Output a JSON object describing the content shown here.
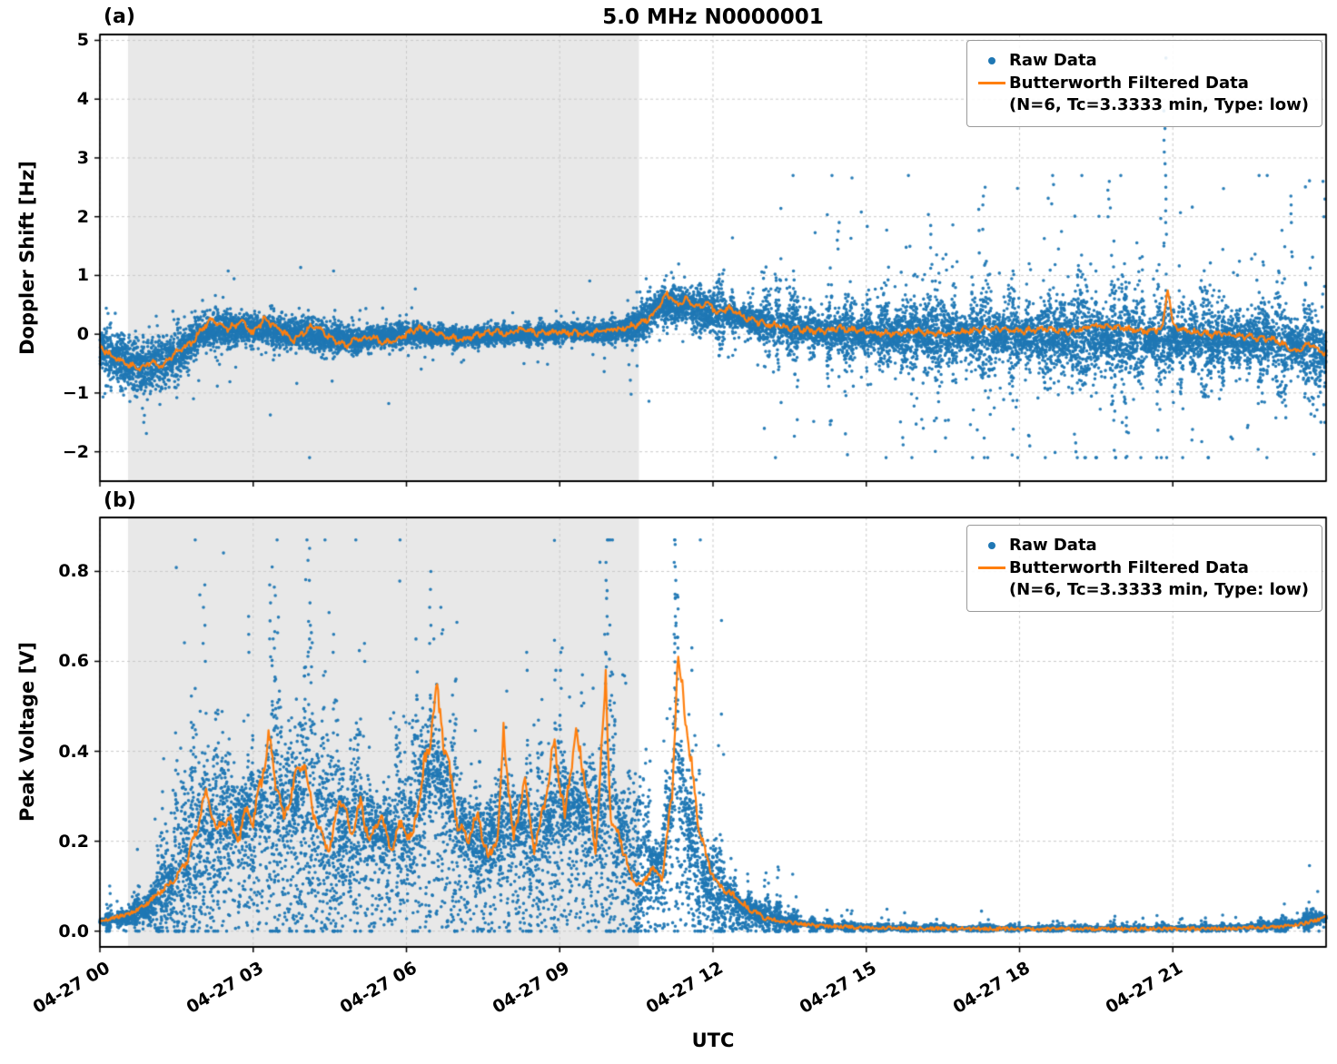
{
  "figure": {
    "title": "5.0 MHz N0000001",
    "xlabel": "UTC",
    "colors": {
      "raw": "#1f77b4",
      "filtered": "#ff7f0e",
      "shade": "#e8e8e8",
      "grid": "#c9c9c9",
      "axis": "#000000"
    },
    "xticks": {
      "hours": [
        0,
        3,
        6,
        9,
        12,
        15,
        18,
        21
      ],
      "labels": [
        "04-27 00",
        "04-27 03",
        "04-27 06",
        "04-27 09",
        "04-27 12",
        "04-27 15",
        "04-27 18",
        "04-27 21"
      ]
    },
    "legend": {
      "raw": "Raw Data",
      "filtered_line1": "Butterworth Filtered Data",
      "filtered_line2": "(N=6, Tc=3.3333 min, Type: low)"
    }
  },
  "chart_data": [
    {
      "id": "doppler",
      "panel_label": "(a)",
      "type": "scatter+line",
      "ylabel": "Doppler Shift [Hz]",
      "x_unit": "hours since 04-27 00:00 UTC",
      "xlim": [
        0,
        24
      ],
      "ylim": [
        -2.5,
        5.1
      ],
      "yticks": {
        "values": [
          -2,
          -1,
          0,
          1,
          2,
          3,
          4,
          5
        ],
        "labels": [
          "−2",
          "−1",
          "0",
          "1",
          "2",
          "3",
          "4",
          "5"
        ]
      },
      "shaded_region_hours": [
        0.55,
        10.55
      ],
      "filtered": {
        "x": [
          0,
          0.2,
          0.5,
          0.8,
          1.0,
          1.2,
          1.5,
          1.8,
          2.0,
          2.2,
          2.5,
          2.8,
          3.0,
          3.2,
          3.5,
          3.8,
          4.0,
          4.2,
          4.5,
          4.8,
          5.0,
          5.3,
          5.6,
          5.9,
          6.2,
          6.5,
          6.8,
          7.1,
          7.4,
          7.7,
          8.0,
          8.3,
          8.6,
          9.0,
          9.4,
          9.8,
          10.2,
          10.5,
          10.8,
          11.0,
          11.1,
          11.3,
          11.5,
          11.7,
          11.9,
          12.1,
          12.3,
          12.6,
          12.9,
          13.2,
          13.6,
          14.0,
          14.5,
          15.0,
          15.5,
          16.0,
          16.5,
          17.0,
          17.5,
          18.0,
          18.5,
          19.0,
          19.5,
          20.0,
          20.5,
          20.8,
          20.9,
          21.0,
          21.3,
          21.7,
          22.0,
          22.5,
          23.0,
          23.4,
          23.7,
          24.0
        ],
        "y": [
          -0.2,
          -0.35,
          -0.5,
          -0.6,
          -0.45,
          -0.55,
          -0.3,
          -0.15,
          0.1,
          0.25,
          0.1,
          0.2,
          0.0,
          0.25,
          0.1,
          -0.1,
          0.05,
          0.15,
          -0.05,
          -0.2,
          -0.1,
          -0.05,
          -0.15,
          -0.05,
          0.1,
          0.05,
          -0.05,
          -0.1,
          0.0,
          0.05,
          0.0,
          0.1,
          0.0,
          0.05,
          0.0,
          0.05,
          0.1,
          0.15,
          0.3,
          0.55,
          0.7,
          0.5,
          0.6,
          0.45,
          0.55,
          0.35,
          0.45,
          0.3,
          0.2,
          0.15,
          0.1,
          0.05,
          0.1,
          0.05,
          0.0,
          0.05,
          0.0,
          0.05,
          0.1,
          0.05,
          0.1,
          0.05,
          0.15,
          0.1,
          0.05,
          0.1,
          0.8,
          0.15,
          0.05,
          0.0,
          0.0,
          -0.05,
          -0.1,
          -0.3,
          -0.15,
          -0.35
        ]
      },
      "envelope": {
        "x": [
          0,
          0.5,
          0.8,
          1.2,
          1.6,
          2.0,
          3.0,
          4.0,
          5.0,
          6.0,
          7.0,
          8.0,
          9.0,
          10.0,
          10.5,
          11.0,
          11.5,
          12.0,
          12.5,
          13.0,
          14.0,
          15.0,
          16.0,
          17.0,
          18.0,
          19.0,
          20.0,
          21.0,
          22.0,
          23.0,
          23.6,
          24.0
        ],
        "center": [
          -0.25,
          -0.5,
          -0.55,
          -0.5,
          -0.3,
          0.05,
          0.1,
          0.0,
          -0.1,
          0.0,
          -0.05,
          0.0,
          0.03,
          0.05,
          0.12,
          0.5,
          0.5,
          0.38,
          0.3,
          0.18,
          0.05,
          0.0,
          0.0,
          0.0,
          -0.02,
          -0.05,
          -0.08,
          -0.1,
          -0.1,
          -0.12,
          -0.25,
          -0.35
        ],
        "spread": [
          0.35,
          0.42,
          0.45,
          0.4,
          0.32,
          0.27,
          0.25,
          0.22,
          0.2,
          0.18,
          0.16,
          0.15,
          0.14,
          0.16,
          0.2,
          0.32,
          0.32,
          0.32,
          0.32,
          0.33,
          0.36,
          0.4,
          0.45,
          0.5,
          0.55,
          0.6,
          0.6,
          0.62,
          0.55,
          0.5,
          0.55,
          0.65
        ]
      },
      "outlier_columns": [
        {
          "x": 0.85,
          "ys": [
            -1.5,
            -1.38,
            -1.26
          ]
        },
        {
          "x": 13.0,
          "ys": [
            1.05,
            0.95
          ]
        },
        {
          "x": 14.45,
          "ys": [
            1.9,
            1.75,
            1.6,
            1.45
          ]
        },
        {
          "x": 16.1,
          "ys": [
            -1.6,
            -1.45
          ]
        },
        {
          "x": 16.25,
          "ys": [
            1.85,
            1.7
          ]
        },
        {
          "x": 17.3,
          "ys": [
            2.5,
            2.35,
            2.2
          ]
        },
        {
          "x": 18.2,
          "ys": [
            -1.9,
            -1.72
          ]
        },
        {
          "x": 19.1,
          "ys": [
            -2.0,
            -1.85,
            -1.7
          ]
        },
        {
          "x": 19.75,
          "ys": [
            2.6,
            2.45,
            2.3,
            2.15,
            2.0
          ]
        },
        {
          "x": 20.85,
          "ys": [
            4.7,
            3.8,
            3.5,
            3.3,
            3.1,
            2.9,
            2.7,
            2.5,
            2.3,
            2.1,
            1.9,
            1.7,
            1.5
          ]
        },
        {
          "x": 21.4,
          "ys": [
            -1.8,
            -1.62
          ]
        },
        {
          "x": 23.3,
          "ys": [
            2.35,
            2.2,
            2.05,
            1.9
          ]
        },
        {
          "x": 23.95,
          "ys": [
            2.6,
            2.3,
            2.0,
            -1.2,
            -1.5
          ]
        }
      ]
    },
    {
      "id": "voltage",
      "panel_label": "(b)",
      "type": "scatter+line",
      "ylabel": "Peak Voltage [V]",
      "x_unit": "hours since 04-27 00:00 UTC",
      "xlim": [
        0,
        24
      ],
      "ylim": [
        -0.035,
        0.92
      ],
      "yticks": {
        "values": [
          0.0,
          0.2,
          0.4,
          0.6,
          0.8
        ],
        "labels": [
          "0.0",
          "0.2",
          "0.4",
          "0.6",
          "0.8"
        ]
      },
      "shaded_region_hours": [
        0.55,
        10.55
      ],
      "filtered": {
        "x": [
          0,
          0.3,
          0.6,
          0.9,
          1.2,
          1.5,
          1.7,
          1.9,
          2.0,
          2.1,
          2.3,
          2.5,
          2.7,
          2.9,
          3.0,
          3.1,
          3.3,
          3.4,
          3.6,
          3.8,
          4.0,
          4.1,
          4.3,
          4.5,
          4.7,
          4.9,
          5.1,
          5.3,
          5.5,
          5.7,
          5.9,
          6.1,
          6.3,
          6.5,
          6.6,
          6.8,
          7.0,
          7.2,
          7.4,
          7.6,
          7.8,
          7.9,
          8.1,
          8.3,
          8.5,
          8.7,
          8.9,
          9.1,
          9.3,
          9.5,
          9.7,
          9.9,
          10.0,
          10.2,
          10.4,
          10.6,
          10.8,
          11.0,
          11.2,
          11.3,
          11.5,
          11.7,
          11.9,
          12.1,
          12.4,
          12.7,
          13.0,
          13.5,
          14.0,
          15.0,
          16.0,
          18.0,
          20.0,
          22.0,
          23.0,
          23.5,
          24.0
        ],
        "y": [
          0.02,
          0.03,
          0.04,
          0.06,
          0.09,
          0.12,
          0.16,
          0.22,
          0.28,
          0.3,
          0.22,
          0.26,
          0.2,
          0.28,
          0.24,
          0.3,
          0.42,
          0.36,
          0.25,
          0.33,
          0.38,
          0.3,
          0.22,
          0.18,
          0.3,
          0.22,
          0.28,
          0.2,
          0.26,
          0.18,
          0.24,
          0.2,
          0.33,
          0.46,
          0.52,
          0.38,
          0.24,
          0.2,
          0.26,
          0.16,
          0.22,
          0.44,
          0.2,
          0.34,
          0.18,
          0.28,
          0.42,
          0.25,
          0.44,
          0.34,
          0.18,
          0.55,
          0.25,
          0.2,
          0.12,
          0.1,
          0.14,
          0.12,
          0.3,
          0.61,
          0.45,
          0.25,
          0.15,
          0.1,
          0.08,
          0.05,
          0.03,
          0.02,
          0.012,
          0.008,
          0.006,
          0.005,
          0.005,
          0.006,
          0.01,
          0.015,
          0.03
        ]
      },
      "envelope": {
        "x": [
          0,
          0.5,
          1.0,
          1.5,
          2.0,
          2.5,
          3.0,
          3.5,
          4.0,
          4.5,
          5.0,
          5.5,
          6.0,
          6.5,
          7.0,
          7.5,
          8.0,
          8.5,
          9.0,
          9.5,
          10.0,
          10.5,
          11.0,
          11.3,
          11.7,
          12.0,
          12.5,
          13.0,
          13.5,
          14.0,
          15.0,
          17.0,
          20.0,
          22.0,
          23.0,
          23.5,
          24.0
        ],
        "center": [
          0.02,
          0.03,
          0.06,
          0.13,
          0.24,
          0.24,
          0.27,
          0.3,
          0.3,
          0.24,
          0.25,
          0.22,
          0.22,
          0.38,
          0.25,
          0.2,
          0.25,
          0.22,
          0.27,
          0.27,
          0.28,
          0.14,
          0.16,
          0.38,
          0.14,
          0.1,
          0.06,
          0.035,
          0.02,
          0.013,
          0.008,
          0.006,
          0.006,
          0.008,
          0.012,
          0.02,
          0.03
        ],
        "spread": [
          0.012,
          0.02,
          0.05,
          0.11,
          0.17,
          0.16,
          0.19,
          0.21,
          0.21,
          0.17,
          0.17,
          0.16,
          0.16,
          0.22,
          0.18,
          0.16,
          0.18,
          0.17,
          0.19,
          0.19,
          0.21,
          0.13,
          0.13,
          0.26,
          0.12,
          0.09,
          0.05,
          0.028,
          0.016,
          0.01,
          0.005,
          0.004,
          0.004,
          0.005,
          0.007,
          0.01,
          0.018
        ]
      },
      "outlier_columns": [
        {
          "x": 2.05,
          "ys": [
            0.77,
            0.72,
            0.68,
            0.64,
            0.6
          ]
        },
        {
          "x": 2.9,
          "ys": [
            0.7,
            0.66,
            0.62
          ]
        },
        {
          "x": 3.35,
          "ys": [
            0.81,
            0.77,
            0.73,
            0.69,
            0.65,
            0.61
          ]
        },
        {
          "x": 4.1,
          "ys": [
            0.78,
            0.73,
            0.68,
            0.63
          ]
        },
        {
          "x": 4.55,
          "ys": [
            0.66,
            0.62
          ]
        },
        {
          "x": 5.2,
          "ys": [
            0.64,
            0.6
          ]
        },
        {
          "x": 6.45,
          "ys": [
            0.8,
            0.76,
            0.72,
            0.68,
            0.64
          ]
        },
        {
          "x": 6.7,
          "ys": [
            0.72,
            0.67
          ]
        },
        {
          "x": 8.35,
          "ys": [
            0.62,
            0.58
          ]
        },
        {
          "x": 9.0,
          "ys": [
            0.62,
            0.58,
            0.54
          ]
        },
        {
          "x": 9.45,
          "ys": [
            0.57,
            0.53
          ]
        },
        {
          "x": 9.9,
          "ys": [
            0.82,
            0.78,
            0.74,
            0.7,
            0.66,
            0.62
          ]
        },
        {
          "x": 11.25,
          "ys": [
            0.86,
            0.82,
            0.78,
            0.74,
            0.7,
            0.66,
            0.62
          ]
        },
        {
          "x": 11.6,
          "ys": [
            0.63,
            0.58
          ]
        }
      ]
    }
  ]
}
